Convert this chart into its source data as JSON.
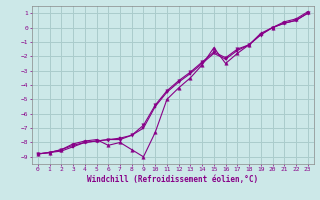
{
  "title": "",
  "xlabel": "Windchill (Refroidissement éolien,°C)",
  "ylabel": "",
  "bg_color": "#cce8e8",
  "grid_color": "#aacccc",
  "line_color": "#880088",
  "marker_color": "#880088",
  "xlim": [
    -0.5,
    23.5
  ],
  "ylim": [
    -9.5,
    1.5
  ],
  "xticks": [
    0,
    1,
    2,
    3,
    4,
    5,
    6,
    7,
    8,
    9,
    10,
    11,
    12,
    13,
    14,
    15,
    16,
    17,
    18,
    19,
    20,
    21,
    22,
    23
  ],
  "yticks": [
    1,
    0,
    -1,
    -2,
    -3,
    -4,
    -5,
    -6,
    -7,
    -8,
    -9
  ],
  "line1_x": [
    0,
    1,
    2,
    3,
    4,
    5,
    6,
    7,
    8,
    9,
    10,
    11,
    12,
    13,
    14,
    15,
    16,
    17,
    18,
    19,
    20,
    21,
    22,
    23
  ],
  "line1_y": [
    -8.8,
    -8.7,
    -8.6,
    -8.3,
    -8.0,
    -7.9,
    -7.8,
    -7.7,
    -7.5,
    -7.0,
    -5.5,
    -4.5,
    -3.8,
    -3.2,
    -2.5,
    -1.8,
    -2.2,
    -1.6,
    -1.2,
    -0.5,
    0.0,
    0.3,
    0.5,
    1.0
  ],
  "line2_x": [
    0,
    1,
    2,
    3,
    4,
    5,
    6,
    7,
    8,
    9,
    10,
    11,
    12,
    13,
    14,
    15,
    16,
    17,
    18,
    19,
    20,
    21,
    22,
    23
  ],
  "line2_y": [
    -8.8,
    -8.7,
    -8.5,
    -8.1,
    -7.9,
    -7.8,
    -8.2,
    -8.0,
    -8.5,
    -9.0,
    -7.3,
    -5.0,
    -4.2,
    -3.5,
    -2.6,
    -1.4,
    -2.5,
    -1.8,
    -1.2,
    -0.4,
    0.0,
    0.4,
    0.6,
    1.1
  ],
  "line3_x": [
    0,
    1,
    2,
    3,
    4,
    5,
    6,
    7,
    8,
    9,
    10,
    11,
    12,
    13,
    14,
    15,
    16,
    17,
    18,
    19,
    20,
    21,
    22,
    23
  ],
  "line3_y": [
    -8.8,
    -8.7,
    -8.5,
    -8.2,
    -8.0,
    -7.9,
    -7.8,
    -7.8,
    -7.5,
    -6.8,
    -5.4,
    -4.4,
    -3.7,
    -3.1,
    -2.4,
    -1.7,
    -2.1,
    -1.5,
    -1.2,
    -0.5,
    0.0,
    0.3,
    0.5,
    1.0
  ]
}
